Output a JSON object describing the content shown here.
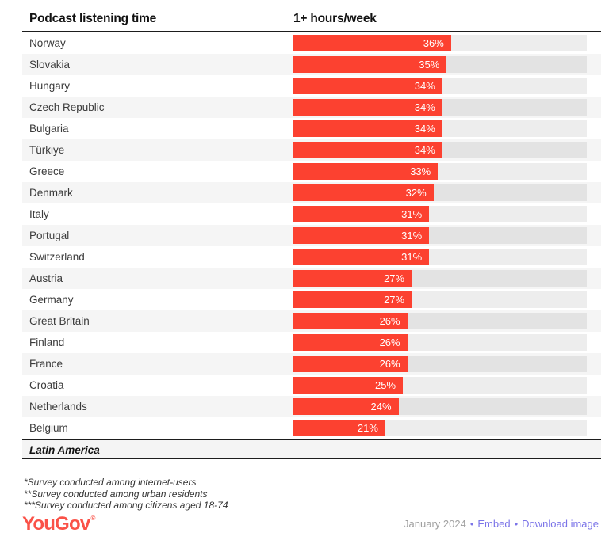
{
  "header": {
    "title": "Podcast listening time",
    "column": "1+ hours/week"
  },
  "chart_data": {
    "type": "bar",
    "orientation": "horizontal",
    "title": "Podcast listening time",
    "xlabel": "1+ hours/week",
    "unit": "%",
    "xlim": [
      0,
      67
    ],
    "grid": false,
    "categories": [
      "Norway",
      "Slovakia",
      "Hungary",
      "Czech Republic",
      "Bulgaria",
      "Türkiye",
      "Greece",
      "Denmark",
      "Italy",
      "Portugal",
      "Switzerland",
      "Austria",
      "Germany",
      "Great Britain",
      "Finland",
      "France",
      "Croatia",
      "Netherlands",
      "Belgium"
    ],
    "values": [
      36,
      35,
      34,
      34,
      34,
      34,
      33,
      32,
      31,
      31,
      31,
      27,
      27,
      26,
      26,
      26,
      25,
      24,
      21
    ]
  },
  "section": {
    "latin_america": "Latin America"
  },
  "footnotes": [
    "*Survey conducted among internet-users",
    "**Survey conducted among urban residents",
    "***Survey conducted among citizens aged 18-74"
  ],
  "footer": {
    "logo": "YouGov",
    "logo_mark": "®",
    "date": "January 2024",
    "separator": "•",
    "embed_label": "Embed",
    "download_label": "Download image"
  },
  "colors": {
    "accent": "#fc4130",
    "link": "#7b74e8",
    "logo": "#fa5248",
    "row_stripe": "#f5f5f5",
    "rule": "#1d1d1d"
  }
}
